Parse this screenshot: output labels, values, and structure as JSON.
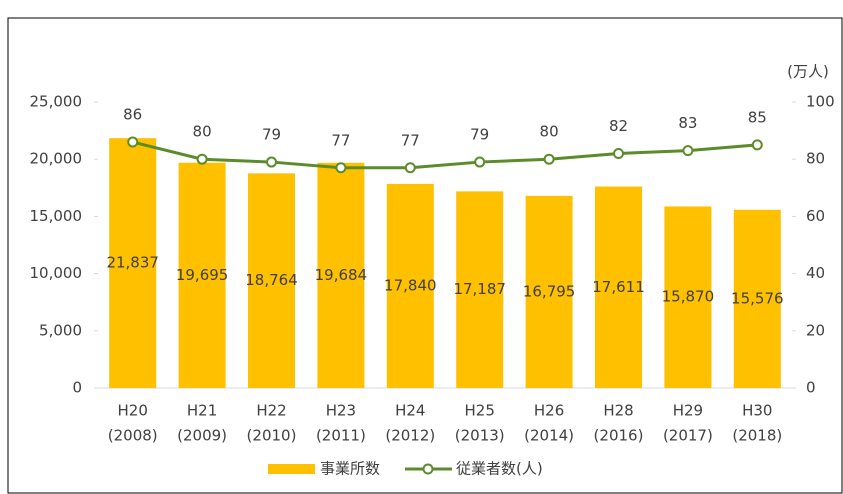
{
  "chart_data": {
    "type": "bar-line",
    "y2_unit": "(万人)",
    "categories": [
      [
        "H20",
        "(2008)"
      ],
      [
        "H21",
        "(2009)"
      ],
      [
        "H22",
        "(2010)"
      ],
      [
        "H23",
        "(2011)"
      ],
      [
        "H24",
        "(2012)"
      ],
      [
        "H25",
        "(2013)"
      ],
      [
        "H26",
        "(2014)"
      ],
      [
        "H28",
        "(2016)"
      ],
      [
        "H29",
        "(2017)"
      ],
      [
        "H30",
        "(2018)"
      ]
    ],
    "series": [
      {
        "name": "事業所数",
        "type": "bar",
        "color": "#ffc000",
        "values": [
          21837,
          19695,
          18764,
          19684,
          17840,
          17187,
          16795,
          17611,
          15870,
          15576
        ],
        "value_labels": [
          "21,837",
          "19,695",
          "18,764",
          "19,684",
          "17,840",
          "17,187",
          "16,795",
          "17,611",
          "15,870",
          "15,576"
        ]
      },
      {
        "name": "従業者数(人)",
        "type": "line",
        "axis": "y2",
        "color": "#5b8c2a",
        "values": [
          86,
          80,
          79,
          77,
          77,
          79,
          80,
          82,
          83,
          85
        ]
      }
    ],
    "ylim": [
      0,
      25000
    ],
    "yticks": [
      0,
      {
        "value": 5000,
        "label": "5,000"
      },
      {
        "value": 10000,
        "label": "10,000"
      },
      {
        "value": 15000,
        "label": "15,000"
      },
      {
        "value": 20000,
        "label": "20,000"
      },
      {
        "value": 25000,
        "label": "25,000"
      }
    ],
    "y2lim": [
      0,
      100
    ],
    "y2ticks": [
      0,
      20,
      40,
      60,
      80,
      100
    ],
    "legend": "bottom"
  }
}
